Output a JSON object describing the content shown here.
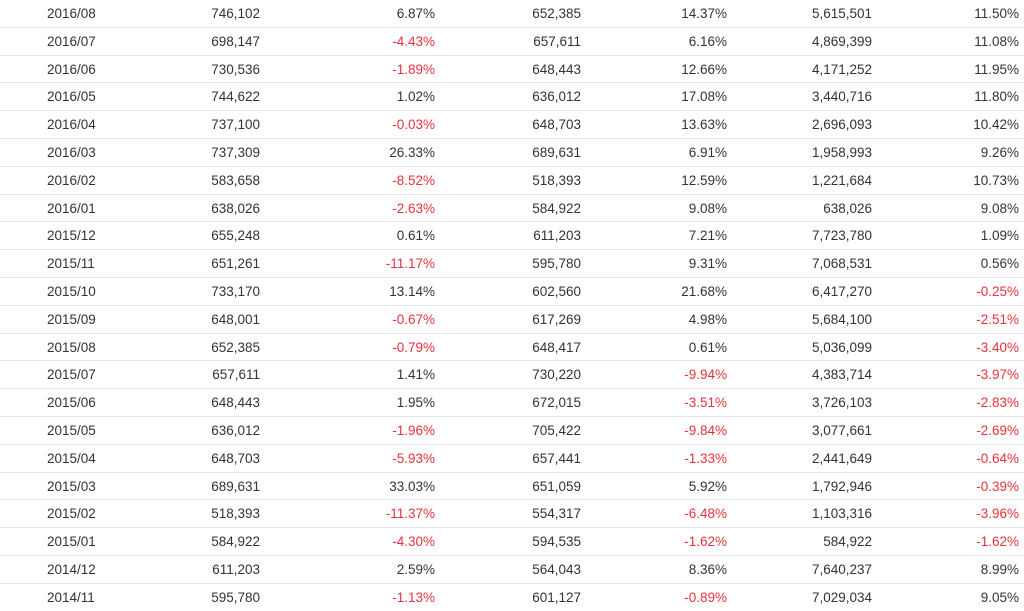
{
  "colors": {
    "text": "#333333",
    "negative": "#e8323c",
    "row_border": "#e6e6e6"
  },
  "rows": [
    {
      "date": "2016/08",
      "v1": "746,102",
      "p1": "6.87%",
      "v2": "652,385",
      "p2": "14.37%",
      "v3": "5,615,501",
      "p3": "11.50%"
    },
    {
      "date": "2016/07",
      "v1": "698,147",
      "p1": "-4.43%",
      "v2": "657,611",
      "p2": "6.16%",
      "v3": "4,869,399",
      "p3": "11.08%"
    },
    {
      "date": "2016/06",
      "v1": "730,536",
      "p1": "-1.89%",
      "v2": "648,443",
      "p2": "12.66%",
      "v3": "4,171,252",
      "p3": "11.95%"
    },
    {
      "date": "2016/05",
      "v1": "744,622",
      "p1": "1.02%",
      "v2": "636,012",
      "p2": "17.08%",
      "v3": "3,440,716",
      "p3": "11.80%"
    },
    {
      "date": "2016/04",
      "v1": "737,100",
      "p1": "-0.03%",
      "v2": "648,703",
      "p2": "13.63%",
      "v3": "2,696,093",
      "p3": "10.42%"
    },
    {
      "date": "2016/03",
      "v1": "737,309",
      "p1": "26.33%",
      "v2": "689,631",
      "p2": "6.91%",
      "v3": "1,958,993",
      "p3": "9.26%"
    },
    {
      "date": "2016/02",
      "v1": "583,658",
      "p1": "-8.52%",
      "v2": "518,393",
      "p2": "12.59%",
      "v3": "1,221,684",
      "p3": "10.73%"
    },
    {
      "date": "2016/01",
      "v1": "638,026",
      "p1": "-2.63%",
      "v2": "584,922",
      "p2": "9.08%",
      "v3": "638,026",
      "p3": "9.08%"
    },
    {
      "date": "2015/12",
      "v1": "655,248",
      "p1": "0.61%",
      "v2": "611,203",
      "p2": "7.21%",
      "v3": "7,723,780",
      "p3": "1.09%"
    },
    {
      "date": "2015/11",
      "v1": "651,261",
      "p1": "-11.17%",
      "v2": "595,780",
      "p2": "9.31%",
      "v3": "7,068,531",
      "p3": "0.56%"
    },
    {
      "date": "2015/10",
      "v1": "733,170",
      "p1": "13.14%",
      "v2": "602,560",
      "p2": "21.68%",
      "v3": "6,417,270",
      "p3": "-0.25%"
    },
    {
      "date": "2015/09",
      "v1": "648,001",
      "p1": "-0.67%",
      "v2": "617,269",
      "p2": "4.98%",
      "v3": "5,684,100",
      "p3": "-2.51%"
    },
    {
      "date": "2015/08",
      "v1": "652,385",
      "p1": "-0.79%",
      "v2": "648,417",
      "p2": "0.61%",
      "v3": "5,036,099",
      "p3": "-3.40%"
    },
    {
      "date": "2015/07",
      "v1": "657,611",
      "p1": "1.41%",
      "v2": "730,220",
      "p2": "-9.94%",
      "v3": "4,383,714",
      "p3": "-3.97%"
    },
    {
      "date": "2015/06",
      "v1": "648,443",
      "p1": "1.95%",
      "v2": "672,015",
      "p2": "-3.51%",
      "v3": "3,726,103",
      "p3": "-2.83%"
    },
    {
      "date": "2015/05",
      "v1": "636,012",
      "p1": "-1.96%",
      "v2": "705,422",
      "p2": "-9.84%",
      "v3": "3,077,661",
      "p3": "-2.69%"
    },
    {
      "date": "2015/04",
      "v1": "648,703",
      "p1": "-5.93%",
      "v2": "657,441",
      "p2": "-1.33%",
      "v3": "2,441,649",
      "p3": "-0.64%"
    },
    {
      "date": "2015/03",
      "v1": "689,631",
      "p1": "33.03%",
      "v2": "651,059",
      "p2": "5.92%",
      "v3": "1,792,946",
      "p3": "-0.39%"
    },
    {
      "date": "2015/02",
      "v1": "518,393",
      "p1": "-11.37%",
      "v2": "554,317",
      "p2": "-6.48%",
      "v3": "1,103,316",
      "p3": "-3.96%"
    },
    {
      "date": "2015/01",
      "v1": "584,922",
      "p1": "-4.30%",
      "v2": "594,535",
      "p2": "-1.62%",
      "v3": "584,922",
      "p3": "-1.62%"
    },
    {
      "date": "2014/12",
      "v1": "611,203",
      "p1": "2.59%",
      "v2": "564,043",
      "p2": "8.36%",
      "v3": "7,640,237",
      "p3": "8.99%"
    },
    {
      "date": "2014/11",
      "v1": "595,780",
      "p1": "-1.13%",
      "v2": "601,127",
      "p2": "-0.89%",
      "v3": "7,029,034",
      "p3": "9.05%"
    }
  ]
}
